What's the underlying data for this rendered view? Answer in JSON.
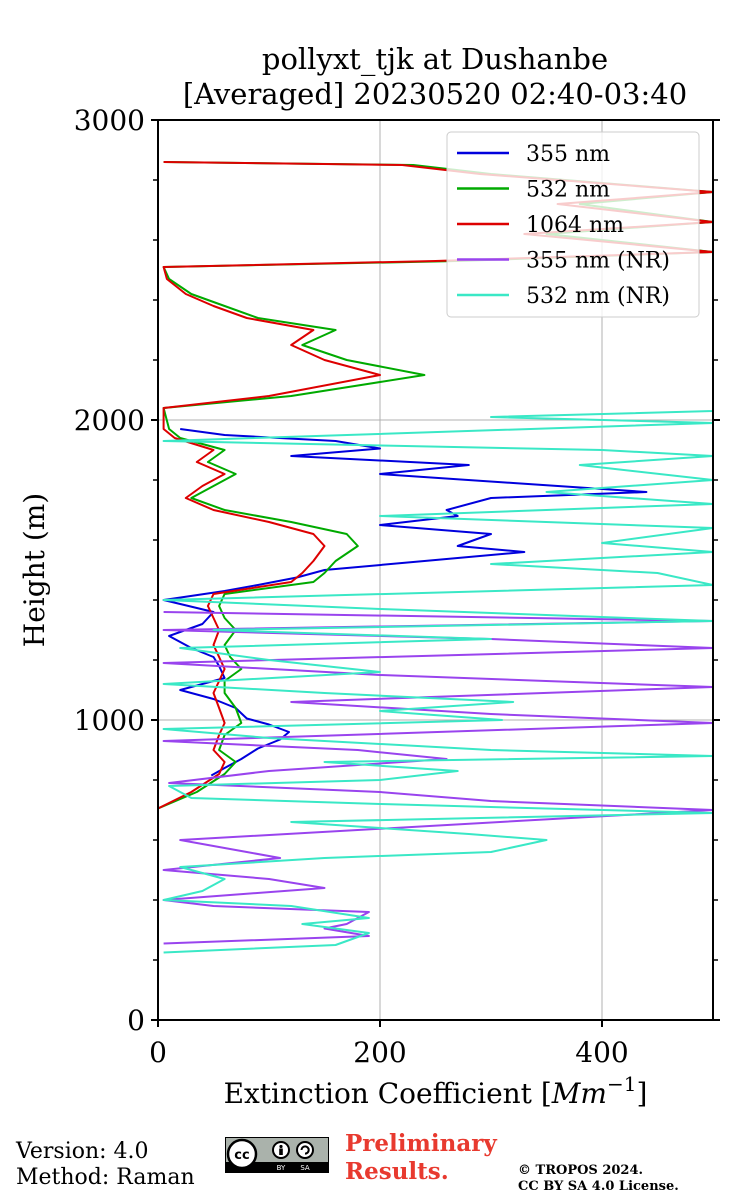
{
  "chart_data": {
    "type": "line",
    "title": "pollyxt_tjk at Dushanbe",
    "subtitle": "[Averaged] 20230520 02:40-03:40",
    "xlabel": "Extinction Coefficient [",
    "xlabel_unit": "Mm",
    "xlabel_exp": "−1",
    "xlabel_close": "]",
    "ylabel": "Height (m)",
    "xlim": [
      0,
      500
    ],
    "ylim": [
      0,
      3000
    ],
    "xticks": [
      0,
      200,
      400
    ],
    "xtick_labels": [
      "0",
      "200",
      "400"
    ],
    "yticks": [
      0,
      1000,
      2000,
      3000
    ],
    "ytick_labels": [
      "0",
      "1000",
      "2000",
      "3000"
    ],
    "yminor": [
      200,
      400,
      600,
      800,
      1200,
      1400,
      1600,
      1800,
      2200,
      2400,
      2600,
      2800
    ],
    "xgrid": true,
    "ygrid": "major",
    "legend_position": "top-right",
    "series": [
      {
        "name": "355 nm",
        "color": "#0000dd",
        "points": [
          [
            48,
            815
          ],
          [
            60,
            840
          ],
          [
            75,
            870
          ],
          [
            90,
            905
          ],
          [
            110,
            935
          ],
          [
            118,
            960
          ],
          [
            100,
            985
          ],
          [
            80,
            1005
          ],
          [
            70,
            1040
          ],
          [
            50,
            1070
          ],
          [
            20,
            1100
          ],
          [
            60,
            1140
          ],
          [
            55,
            1180
          ],
          [
            50,
            1210
          ],
          [
            30,
            1240
          ],
          [
            10,
            1280
          ],
          [
            40,
            1320
          ],
          [
            50,
            1360
          ],
          [
            5,
            1400
          ],
          [
            60,
            1430
          ],
          [
            90,
            1450
          ],
          [
            125,
            1475
          ],
          [
            150,
            1500
          ],
          [
            240,
            1530
          ],
          [
            330,
            1560
          ],
          [
            270,
            1580
          ],
          [
            300,
            1620
          ],
          [
            200,
            1650
          ],
          [
            270,
            1680
          ],
          [
            260,
            1700
          ],
          [
            300,
            1740
          ],
          [
            440,
            1760
          ],
          [
            320,
            1790
          ],
          [
            200,
            1820
          ],
          [
            280,
            1850
          ],
          [
            120,
            1880
          ],
          [
            200,
            1905
          ],
          [
            160,
            1930
          ],
          [
            60,
            1950
          ],
          [
            20,
            1970
          ]
        ]
      },
      {
        "name": "532 nm",
        "color": "#00aa00",
        "points": [
          [
            0,
            705
          ],
          [
            35,
            760
          ],
          [
            60,
            820
          ],
          [
            70,
            860
          ],
          [
            55,
            900
          ],
          [
            60,
            950
          ],
          [
            75,
            990
          ],
          [
            70,
            1040
          ],
          [
            60,
            1090
          ],
          [
            60,
            1130
          ],
          [
            75,
            1170
          ],
          [
            65,
            1210
          ],
          [
            60,
            1250
          ],
          [
            70,
            1300
          ],
          [
            60,
            1340
          ],
          [
            55,
            1380
          ],
          [
            60,
            1420
          ],
          [
            140,
            1460
          ],
          [
            150,
            1490
          ],
          [
            160,
            1530
          ],
          [
            180,
            1580
          ],
          [
            170,
            1620
          ],
          [
            120,
            1660
          ],
          [
            60,
            1700
          ],
          [
            30,
            1740
          ],
          [
            50,
            1780
          ],
          [
            70,
            1820
          ],
          [
            45,
            1860
          ],
          [
            60,
            1900
          ],
          [
            20,
            1940
          ],
          [
            10,
            1970
          ],
          [
            5,
            2040
          ],
          [
            120,
            2080
          ],
          [
            240,
            2150
          ],
          [
            170,
            2200
          ],
          [
            130,
            2250
          ],
          [
            160,
            2300
          ],
          [
            90,
            2340
          ],
          [
            60,
            2380
          ],
          [
            30,
            2420
          ],
          [
            10,
            2470
          ],
          [
            5,
            2510
          ],
          [
            270,
            2530
          ],
          [
            500,
            2560
          ],
          [
            350,
            2620
          ],
          [
            500,
            2660
          ],
          [
            380,
            2720
          ],
          [
            500,
            2760
          ],
          [
            300,
            2820
          ],
          [
            230,
            2850
          ],
          [
            5,
            2860
          ]
        ]
      },
      {
        "name": "1064 nm",
        "color": "#dd0000",
        "points": [
          [
            0,
            705
          ],
          [
            30,
            760
          ],
          [
            55,
            820
          ],
          [
            60,
            860
          ],
          [
            50,
            900
          ],
          [
            55,
            950
          ],
          [
            60,
            990
          ],
          [
            55,
            1040
          ],
          [
            50,
            1090
          ],
          [
            55,
            1130
          ],
          [
            60,
            1170
          ],
          [
            55,
            1210
          ],
          [
            50,
            1250
          ],
          [
            55,
            1300
          ],
          [
            50,
            1340
          ],
          [
            45,
            1380
          ],
          [
            50,
            1420
          ],
          [
            120,
            1460
          ],
          [
            130,
            1490
          ],
          [
            140,
            1530
          ],
          [
            150,
            1580
          ],
          [
            140,
            1620
          ],
          [
            100,
            1660
          ],
          [
            50,
            1700
          ],
          [
            25,
            1740
          ],
          [
            40,
            1780
          ],
          [
            60,
            1820
          ],
          [
            35,
            1860
          ],
          [
            50,
            1900
          ],
          [
            15,
            1940
          ],
          [
            5,
            1970
          ],
          [
            5,
            2040
          ],
          [
            100,
            2080
          ],
          [
            200,
            2150
          ],
          [
            150,
            2200
          ],
          [
            120,
            2250
          ],
          [
            140,
            2300
          ],
          [
            80,
            2340
          ],
          [
            50,
            2380
          ],
          [
            25,
            2420
          ],
          [
            8,
            2470
          ],
          [
            5,
            2510
          ],
          [
            250,
            2530
          ],
          [
            500,
            2560
          ],
          [
            330,
            2620
          ],
          [
            500,
            2660
          ],
          [
            360,
            2720
          ],
          [
            500,
            2760
          ],
          [
            290,
            2820
          ],
          [
            220,
            2850
          ],
          [
            5,
            2860
          ]
        ]
      },
      {
        "name": "355 nm (NR)",
        "color": "#9944ee",
        "points": [
          [
            5,
            255
          ],
          [
            190,
            280
          ],
          [
            150,
            305
          ],
          [
            170,
            320
          ],
          [
            190,
            360
          ],
          [
            50,
            380
          ],
          [
            5,
            400
          ],
          [
            150,
            440
          ],
          [
            100,
            470
          ],
          [
            5,
            500
          ],
          [
            110,
            540
          ],
          [
            80,
            560
          ],
          [
            20,
            600
          ],
          [
            500,
            700
          ],
          [
            300,
            730
          ],
          [
            200,
            760
          ],
          [
            10,
            790
          ],
          [
            100,
            830
          ],
          [
            260,
            870
          ],
          [
            180,
            900
          ],
          [
            5,
            930
          ],
          [
            500,
            990
          ],
          [
            300,
            1020
          ],
          [
            120,
            1060
          ],
          [
            500,
            1110
          ],
          [
            200,
            1150
          ],
          [
            5,
            1190
          ],
          [
            500,
            1240
          ],
          [
            300,
            1270
          ],
          [
            5,
            1300
          ],
          [
            500,
            1330
          ],
          [
            5,
            1360
          ]
        ]
      },
      {
        "name": "532 nm (NR)",
        "color": "#3ae8c6",
        "points": [
          [
            5,
            225
          ],
          [
            160,
            250
          ],
          [
            190,
            290
          ],
          [
            130,
            320
          ],
          [
            190,
            340
          ],
          [
            120,
            380
          ],
          [
            5,
            400
          ],
          [
            40,
            430
          ],
          [
            60,
            470
          ],
          [
            20,
            510
          ],
          [
            150,
            540
          ],
          [
            300,
            560
          ],
          [
            350,
            600
          ],
          [
            280,
            620
          ],
          [
            120,
            660
          ],
          [
            500,
            690
          ],
          [
            200,
            720
          ],
          [
            30,
            740
          ],
          [
            10,
            780
          ],
          [
            200,
            800
          ],
          [
            270,
            830
          ],
          [
            150,
            860
          ],
          [
            500,
            880
          ],
          [
            300,
            900
          ],
          [
            100,
            940
          ],
          [
            5,
            970
          ],
          [
            310,
            1000
          ],
          [
            200,
            1030
          ],
          [
            320,
            1060
          ],
          [
            150,
            1090
          ],
          [
            5,
            1120
          ],
          [
            200,
            1160
          ],
          [
            100,
            1200
          ],
          [
            20,
            1240
          ],
          [
            300,
            1270
          ],
          [
            50,
            1300
          ],
          [
            500,
            1330
          ],
          [
            200,
            1370
          ],
          [
            5,
            1400
          ],
          [
            500,
            1450
          ],
          [
            450,
            1490
          ],
          [
            300,
            1520
          ],
          [
            500,
            1560
          ],
          [
            400,
            1590
          ],
          [
            500,
            1640
          ],
          [
            200,
            1680
          ],
          [
            500,
            1720
          ],
          [
            350,
            1760
          ],
          [
            500,
            1800
          ],
          [
            380,
            1850
          ],
          [
            500,
            1880
          ],
          [
            400,
            1900
          ],
          [
            5,
            1930
          ],
          [
            500,
            1990
          ],
          [
            300,
            2010
          ],
          [
            500,
            2030
          ],
          [
            500,
            2050
          ]
        ]
      }
    ]
  },
  "footer": {
    "version": "Version: 4.0",
    "method": "Method: Raman",
    "preliminary_line1": "Preliminary",
    "preliminary_line2": "Results.",
    "copyright_line1": "© TROPOS 2024.",
    "copyright_line2": "CC BY SA 4.0 License.",
    "cc_badge_text": "cc",
    "cc_by": "BY",
    "cc_sa": "SA"
  }
}
